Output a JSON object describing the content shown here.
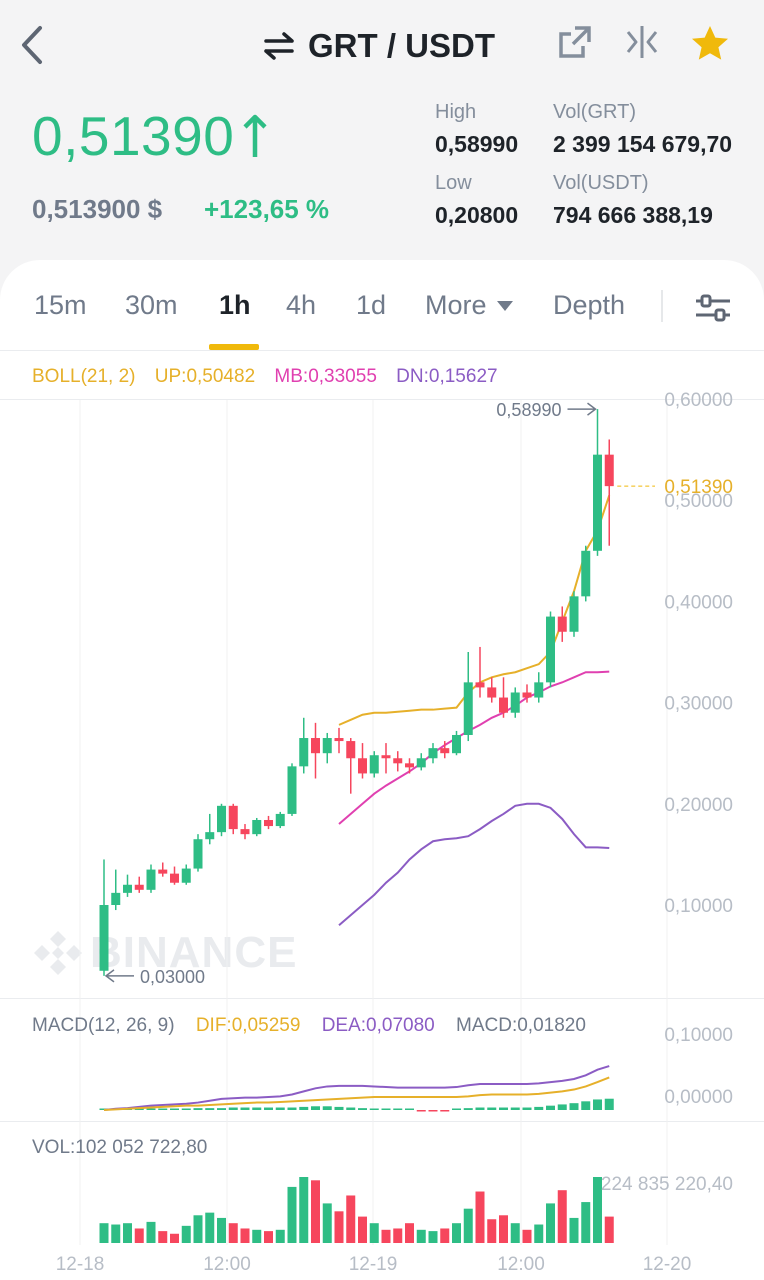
{
  "header": {
    "pair": "GRT / USDT",
    "icons": [
      "back-arrow-icon",
      "swap-icon",
      "external-link-icon",
      "compare-icon",
      "star-icon"
    ]
  },
  "ticker": {
    "price": "0,51390",
    "fiat_price": "0,513900 $",
    "change": "+123,65 %",
    "high_label": "High",
    "high": "0,58990",
    "low_label": "Low",
    "low": "0,20800",
    "vol_grt_label": "Vol(GRT)",
    "vol_grt": "2 399 154 679,70",
    "vol_usdt_label": "Vol(USDT)",
    "vol_usdt": "794 666 388,19"
  },
  "tabs": {
    "t15m": "15m",
    "t30m": "30m",
    "t1h": "1h",
    "t4h": "4h",
    "t1d": "1d",
    "more": "More",
    "depth": "Depth",
    "active": "1h"
  },
  "indicators": {
    "boll": {
      "name": "BOLL(21, 2)",
      "up": "UP:0,50482",
      "mb": "MB:0,33055",
      "dn": "DN:0,15627"
    },
    "macd": {
      "name": "MACD(12, 26, 9)",
      "dif": "DIF:0,05259",
      "dea": "DEA:0,07080",
      "macd": "MACD:0,01820"
    },
    "vol": "VOL:102 052 722,80"
  },
  "watermark": "BINANCE",
  "colors": {
    "up": "#2ebd85",
    "down": "#f6465d",
    "accent": "#f0b90b",
    "boll_up": "#e6b02a",
    "boll_mb": "#e040b0",
    "boll_dn": "#8b5cc4"
  },
  "chart_data": {
    "type": "candlestick",
    "interval": "1h",
    "x_ticks": [
      "12-18",
      "12:00",
      "12-19",
      "12:00",
      "12-20"
    ],
    "y_ticks": [
      "0,60000",
      "0,50000",
      "0,40000",
      "0,30000",
      "0,20000",
      "0,10000"
    ],
    "ylim": [
      0.03,
      0.6
    ],
    "current_price_label": "0,51390",
    "current_price": 0.5139,
    "high_marker": "0,58990",
    "low_marker": "0,03000",
    "candles": [
      {
        "o": 0.035,
        "h": 0.145,
        "l": 0.03,
        "c": 0.1,
        "v": 0.3
      },
      {
        "o": 0.1,
        "h": 0.135,
        "l": 0.095,
        "c": 0.112,
        "v": 0.28
      },
      {
        "o": 0.112,
        "h": 0.13,
        "l": 0.108,
        "c": 0.12,
        "v": 0.3
      },
      {
        "o": 0.12,
        "h": 0.128,
        "l": 0.112,
        "c": 0.115,
        "v": 0.22
      },
      {
        "o": 0.115,
        "h": 0.14,
        "l": 0.112,
        "c": 0.135,
        "v": 0.32
      },
      {
        "o": 0.135,
        "h": 0.142,
        "l": 0.128,
        "c": 0.131,
        "v": 0.18
      },
      {
        "o": 0.131,
        "h": 0.138,
        "l": 0.12,
        "c": 0.122,
        "v": 0.14
      },
      {
        "o": 0.122,
        "h": 0.14,
        "l": 0.12,
        "c": 0.136,
        "v": 0.26
      },
      {
        "o": 0.136,
        "h": 0.17,
        "l": 0.133,
        "c": 0.165,
        "v": 0.42
      },
      {
        "o": 0.165,
        "h": 0.19,
        "l": 0.16,
        "c": 0.172,
        "v": 0.46
      },
      {
        "o": 0.172,
        "h": 0.2,
        "l": 0.168,
        "c": 0.198,
        "v": 0.38
      },
      {
        "o": 0.198,
        "h": 0.2,
        "l": 0.17,
        "c": 0.175,
        "v": 0.3
      },
      {
        "o": 0.175,
        "h": 0.18,
        "l": 0.165,
        "c": 0.17,
        "v": 0.22
      },
      {
        "o": 0.17,
        "h": 0.186,
        "l": 0.168,
        "c": 0.184,
        "v": 0.2
      },
      {
        "o": 0.184,
        "h": 0.188,
        "l": 0.175,
        "c": 0.178,
        "v": 0.18
      },
      {
        "o": 0.178,
        "h": 0.192,
        "l": 0.176,
        "c": 0.19,
        "v": 0.2
      },
      {
        "o": 0.19,
        "h": 0.24,
        "l": 0.188,
        "c": 0.237,
        "v": 0.85
      },
      {
        "o": 0.237,
        "h": 0.285,
        "l": 0.23,
        "c": 0.265,
        "v": 1.0
      },
      {
        "o": 0.265,
        "h": 0.28,
        "l": 0.225,
        "c": 0.25,
        "v": 0.95
      },
      {
        "o": 0.25,
        "h": 0.27,
        "l": 0.24,
        "c": 0.265,
        "v": 0.6
      },
      {
        "o": 0.265,
        "h": 0.275,
        "l": 0.25,
        "c": 0.262,
        "v": 0.48
      },
      {
        "o": 0.262,
        "h": 0.265,
        "l": 0.21,
        "c": 0.245,
        "v": 0.72
      },
      {
        "o": 0.245,
        "h": 0.26,
        "l": 0.225,
        "c": 0.23,
        "v": 0.4
      },
      {
        "o": 0.23,
        "h": 0.252,
        "l": 0.226,
        "c": 0.248,
        "v": 0.3
      },
      {
        "o": 0.248,
        "h": 0.26,
        "l": 0.23,
        "c": 0.245,
        "v": 0.2
      },
      {
        "o": 0.245,
        "h": 0.252,
        "l": 0.232,
        "c": 0.24,
        "v": 0.22
      },
      {
        "o": 0.24,
        "h": 0.245,
        "l": 0.23,
        "c": 0.236,
        "v": 0.3
      },
      {
        "o": 0.236,
        "h": 0.25,
        "l": 0.233,
        "c": 0.245,
        "v": 0.2
      },
      {
        "o": 0.245,
        "h": 0.26,
        "l": 0.24,
        "c": 0.255,
        "v": 0.18
      },
      {
        "o": 0.255,
        "h": 0.262,
        "l": 0.245,
        "c": 0.25,
        "v": 0.22
      },
      {
        "o": 0.25,
        "h": 0.272,
        "l": 0.248,
        "c": 0.268,
        "v": 0.3
      },
      {
        "o": 0.268,
        "h": 0.35,
        "l": 0.262,
        "c": 0.32,
        "v": 0.52
      },
      {
        "o": 0.32,
        "h": 0.355,
        "l": 0.305,
        "c": 0.315,
        "v": 0.78
      },
      {
        "o": 0.315,
        "h": 0.325,
        "l": 0.3,
        "c": 0.305,
        "v": 0.36
      },
      {
        "o": 0.305,
        "h": 0.325,
        "l": 0.285,
        "c": 0.29,
        "v": 0.42
      },
      {
        "o": 0.29,
        "h": 0.315,
        "l": 0.285,
        "c": 0.31,
        "v": 0.3
      },
      {
        "o": 0.31,
        "h": 0.318,
        "l": 0.3,
        "c": 0.305,
        "v": 0.2
      },
      {
        "o": 0.305,
        "h": 0.33,
        "l": 0.3,
        "c": 0.32,
        "v": 0.28
      },
      {
        "o": 0.32,
        "h": 0.39,
        "l": 0.315,
        "c": 0.385,
        "v": 0.6
      },
      {
        "o": 0.385,
        "h": 0.395,
        "l": 0.36,
        "c": 0.37,
        "v": 0.8
      },
      {
        "o": 0.37,
        "h": 0.41,
        "l": 0.365,
        "c": 0.405,
        "v": 0.38
      },
      {
        "o": 0.405,
        "h": 0.455,
        "l": 0.4,
        "c": 0.45,
        "v": 0.62
      },
      {
        "o": 0.45,
        "h": 0.59,
        "l": 0.445,
        "c": 0.545,
        "v": 1.0
      },
      {
        "o": 0.545,
        "h": 0.56,
        "l": 0.455,
        "c": 0.5139,
        "v": 0.4
      }
    ],
    "boll_start_index": 20,
    "boll_up": [
      0.278,
      0.283,
      0.288,
      0.29,
      0.29,
      0.291,
      0.292,
      0.293,
      0.293,
      0.294,
      0.295,
      0.31,
      0.32,
      0.325,
      0.328,
      0.33,
      0.334,
      0.338,
      0.35,
      0.38,
      0.41,
      0.45,
      0.47,
      0.5048
    ],
    "boll_mb": [
      0.18,
      0.19,
      0.2,
      0.21,
      0.218,
      0.225,
      0.232,
      0.24,
      0.25,
      0.258,
      0.265,
      0.272,
      0.278,
      0.285,
      0.29,
      0.297,
      0.305,
      0.31,
      0.316,
      0.32,
      0.325,
      0.33,
      0.33,
      0.3306
    ],
    "boll_dn": [
      0.08,
      0.09,
      0.1,
      0.11,
      0.122,
      0.132,
      0.145,
      0.155,
      0.163,
      0.165,
      0.166,
      0.168,
      0.175,
      0.183,
      0.19,
      0.198,
      0.2,
      0.2,
      0.196,
      0.185,
      0.17,
      0.157,
      0.157,
      0.1563
    ],
    "macd_ticks": [
      "0,10000",
      "0,00000"
    ],
    "macd_dif": [
      0,
      0.001,
      0.002,
      0.003,
      0.004,
      0.005,
      0.006,
      0.007,
      0.007,
      0.008,
      0.009,
      0.01,
      0.011,
      0.012,
      0.012,
      0.013,
      0.014,
      0.015,
      0.016,
      0.017,
      0.018,
      0.019,
      0.02,
      0.021,
      0.021,
      0.021,
      0.021,
      0.021,
      0.021,
      0.021,
      0.021,
      0.022,
      0.024,
      0.025,
      0.025,
      0.025,
      0.025,
      0.026,
      0.028,
      0.03,
      0.033,
      0.038,
      0.045,
      0.0526
    ],
    "macd_dea": [
      0,
      0.002,
      0.003,
      0.005,
      0.007,
      0.008,
      0.009,
      0.01,
      0.012,
      0.015,
      0.018,
      0.019,
      0.02,
      0.02,
      0.021,
      0.022,
      0.025,
      0.03,
      0.035,
      0.038,
      0.039,
      0.039,
      0.039,
      0.038,
      0.037,
      0.036,
      0.036,
      0.036,
      0.036,
      0.036,
      0.037,
      0.04,
      0.042,
      0.042,
      0.042,
      0.042,
      0.042,
      0.043,
      0.045,
      0.047,
      0.05,
      0.056,
      0.065,
      0.0708
    ],
    "macd_hist": [
      0.001,
      0.001,
      0.001,
      0.002,
      0.002,
      0.002,
      0.002,
      0.002,
      0.003,
      0.003,
      0.003,
      0.004,
      0.004,
      0.004,
      0.004,
      0.004,
      0.004,
      0.005,
      0.006,
      0.006,
      0.005,
      0.004,
      0.003,
      0.002,
      0.002,
      0.001,
      0.001,
      -0.001,
      -0.002,
      -0.002,
      0.001,
      0.003,
      0.004,
      0.004,
      0.004,
      0.004,
      0.004,
      0.005,
      0.007,
      0.009,
      0.011,
      0.014,
      0.017,
      0.0182
    ],
    "vol_top_label": "224 835 220,40"
  }
}
